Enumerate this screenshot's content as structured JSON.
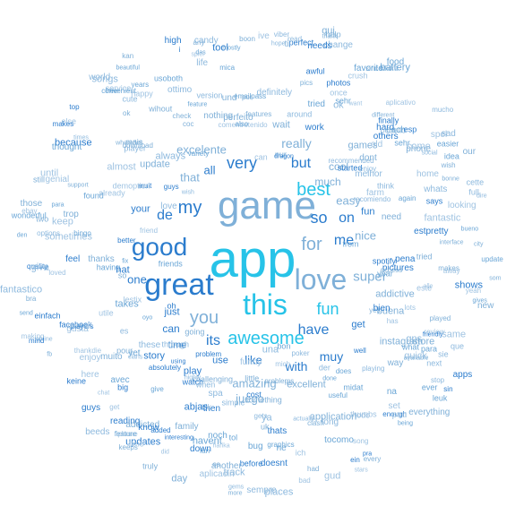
{
  "words": {
    "app": "app",
    "game": "game",
    "great": "great",
    "this": "this",
    "love": "love",
    "good": "good",
    "awesome": "awesome",
    "you": "you",
    "for": "for",
    "best": "best",
    "my": "my",
    "very": "very",
    "fun": "fun",
    "so": "so",
    "but": "but",
    "de": "de",
    "on": "on",
    "me": "me",
    "have": "have",
    "its": "its",
    "super": "super",
    "really": "really",
    "excelente": "excelente",
    "with": "with",
    "muy": "muy",
    "amazing": "amazing",
    "one": "one",
    "nice": "nice",
    "easy": "easy",
    "that": "that",
    "all": "all",
    "can": "can",
    "like": "like",
    "juego": "juego",
    "much": "much",
    "cool": "cool",
    "addictive": "addictive",
    "buena": "buena",
    "excellent": "excellent",
    "games": "games",
    "application": "application",
    "instagram": "instagram",
    "just": "just",
    "time": "time",
    "play": "play",
    "use": "use",
    "get": "get",
    "your": "your",
    "update": "update",
    "need": "need",
    "thanks": "thanks",
    "dont": "dont"
  },
  "small_words": [
    "support",
    "utile",
    "started",
    "noch",
    "sie",
    "check",
    "loved",
    "fun",
    "takes",
    "es",
    "os",
    "making",
    "added",
    "feature",
    "recomiendo",
    "bra",
    "here",
    "enough",
    "available",
    "ottimo",
    "truly",
    "gusta",
    "players",
    "emailpass",
    "definitely",
    "our",
    "service",
    "problem",
    "yet",
    "track",
    "going",
    "quick",
    "finally",
    "na",
    "gems",
    "nothing",
    "aplicativo",
    "pra",
    "year",
    "sincedidnt",
    "played",
    "review",
    "then",
    "done",
    "next",
    "so",
    "can",
    "updates",
    "convenient",
    "gps",
    "yes",
    "este",
    "big",
    "wonderful",
    "melhor",
    "phone",
    "fantastic",
    "feel",
    "easier",
    "world",
    "store",
    "happy",
    "perfect",
    "each",
    "through",
    "kan",
    "song",
    "interesting",
    "den",
    "long",
    "por",
    "else",
    "ein",
    "sehr",
    "der",
    "pour",
    "alle",
    "einfach",
    "leuk",
    "clans",
    "perfeito",
    "friend",
    "thats",
    "ne",
    "cette",
    "help",
    "los",
    "because",
    "give",
    "think",
    "any",
    "set",
    "top",
    "found",
    "these",
    "two",
    "chat",
    "story",
    "idea",
    "online",
    "keeps",
    "lots",
    "estpretty",
    "para",
    "todo",
    "uk",
    "ich",
    "it",
    "friends",
    "wish",
    "challenging",
    "looking",
    "pena",
    "food",
    "social",
    "wheredes",
    "get",
    "makes",
    "das",
    "playing",
    "little",
    "keep",
    "using",
    "does",
    "highly",
    "family",
    "sometimes",
    "reading",
    "bug",
    "player",
    "different",
    "thankdie",
    "i",
    "ever",
    "que",
    "tried",
    "did",
    "facebook",
    "nur",
    "hope",
    "qui",
    "kik",
    "high",
    "avec",
    "around",
    "addicted",
    "lestix",
    "better",
    "from",
    "ya",
    "und",
    "want",
    "pictures",
    "beautiful",
    "poker",
    "som",
    "already",
    "cost",
    "fix",
    "life",
    "day",
    "spiel",
    "watch",
    "thought",
    "mucho",
    "coc",
    "timo",
    "abjas",
    "update",
    "ok",
    "had",
    "genial",
    "down",
    "favorite",
    "times",
    "city",
    "overall",
    "absolutely",
    "useful",
    "simple",
    "way",
    "has",
    "muit",
    "para",
    "full",
    "ok",
    "ebay",
    "friendly",
    "years",
    "candy",
    "wihout",
    "spel",
    "hard",
    "bueno",
    "always",
    "more",
    "aplicacin",
    "sin",
    "being",
    "change",
    "trop",
    "comentretenido",
    "work",
    "bon",
    "when",
    "still",
    "iphone",
    "well",
    "tol",
    "una",
    "muito",
    "bad",
    "apps",
    "oyo",
    "cute",
    "every",
    "enjoy",
    "needs",
    "also",
    "songs",
    "wish",
    "yeah",
    "know",
    "fan",
    "spa",
    "ti",
    "peu",
    "awful",
    "tocomo",
    "version",
    "wait",
    "once",
    "before",
    "having",
    "whats",
    "new",
    "stars",
    "dragon",
    "havent",
    "stop",
    "mais",
    "harika",
    "quality",
    "usoboth",
    "gets",
    "download",
    "mich",
    "mind",
    "mica",
    "fantastico",
    "everything",
    "same",
    "tool",
    "bingo",
    "recommended",
    "clash",
    "come",
    "oh",
    "midat",
    "options",
    "bonne",
    "crush",
    "guys",
    "feature",
    "give",
    "fb",
    "farm",
    "guys",
    "graphics",
    "pcbello",
    "features",
    "funny",
    "photos",
    "battery",
    "viber",
    "interface",
    "home",
    "spotify",
    "free",
    "places",
    "problems",
    "away",
    "shows",
    "variety",
    "beeds",
    "those",
    "almost",
    "says",
    "gives",
    "sempre",
    "access",
    "ive",
    "others",
    "tried",
    "dire",
    "boon",
    "demoption",
    "esp",
    "what",
    "love",
    "thank",
    "thumbs",
    "bien",
    "again",
    "actually",
    "another",
    "until",
    "hat",
    "send",
    "sad",
    "something",
    "old",
    "doesnt",
    "mostly",
    "read",
    "pics",
    "gud",
    "keine",
    "sehr",
    "enjoy",
    "makes"
  ]
}
